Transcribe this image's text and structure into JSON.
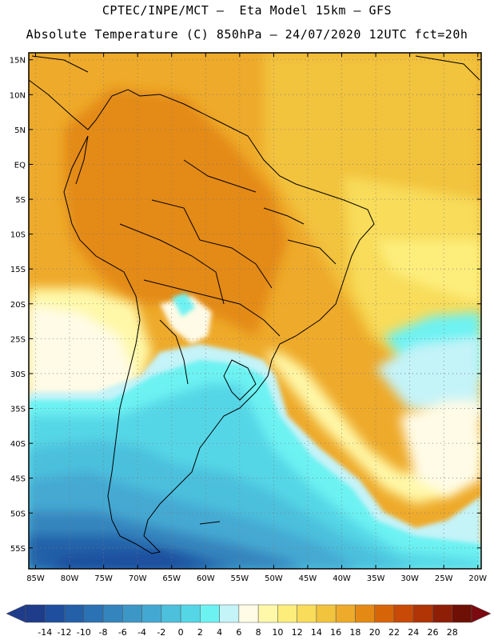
{
  "header": {
    "line1": "CPTEC/INPE/MCT –  Eta Model 15km – GFS",
    "line2": "Absolute Temperature (C) 850hPa – 24/07/2020 12UTC fct=20h"
  },
  "map": {
    "lat_labels": [
      "15N",
      "10N",
      "5N",
      "EQ",
      "5S",
      "10S",
      "15S",
      "20S",
      "25S",
      "30S",
      "35S",
      "40S",
      "45S",
      "50S",
      "55S"
    ],
    "lat_values": [
      15,
      10,
      5,
      0,
      -5,
      -10,
      -15,
      -20,
      -25,
      -30,
      -35,
      -40,
      -45,
      -50,
      -55
    ],
    "lon_labels": [
      "85W",
      "80W",
      "75W",
      "70W",
      "65W",
      "60W",
      "55W",
      "50W",
      "45W",
      "40W",
      "35W",
      "30W",
      "25W",
      "20W"
    ],
    "lon_values": [
      -85,
      -80,
      -75,
      -70,
      -65,
      -60,
      -55,
      -50,
      -45,
      -40,
      -35,
      -30,
      -25,
      -20
    ],
    "lat_range": [
      -58,
      16
    ],
    "lon_range": [
      -86,
      -19.5
    ]
  },
  "colorbar": {
    "labels": [
      "-14",
      "-12",
      "-10",
      "-8",
      "-6",
      "-4",
      "-2",
      "0",
      "2",
      "4",
      "6",
      "8",
      "10",
      "12",
      "14",
      "16",
      "18",
      "20",
      "22",
      "24",
      "26",
      "28"
    ],
    "colors": [
      "#1e3c8a",
      "#1f4e9e",
      "#2460a8",
      "#2b72b4",
      "#3484bd",
      "#3d97c6",
      "#44a9d2",
      "#4cc0dd",
      "#55d6e6",
      "#6df2f2",
      "#c4f3f8",
      "#fffbe6",
      "#fff8a8",
      "#fdee7c",
      "#f8dc5a",
      "#f2c33c",
      "#eeaa2a",
      "#e48a14",
      "#d86408",
      "#c84a06",
      "#b03406",
      "#8e1e06",
      "#6e1006"
    ],
    "under_color": "#1e3c8a",
    "over_color": "#7a0a10"
  }
}
